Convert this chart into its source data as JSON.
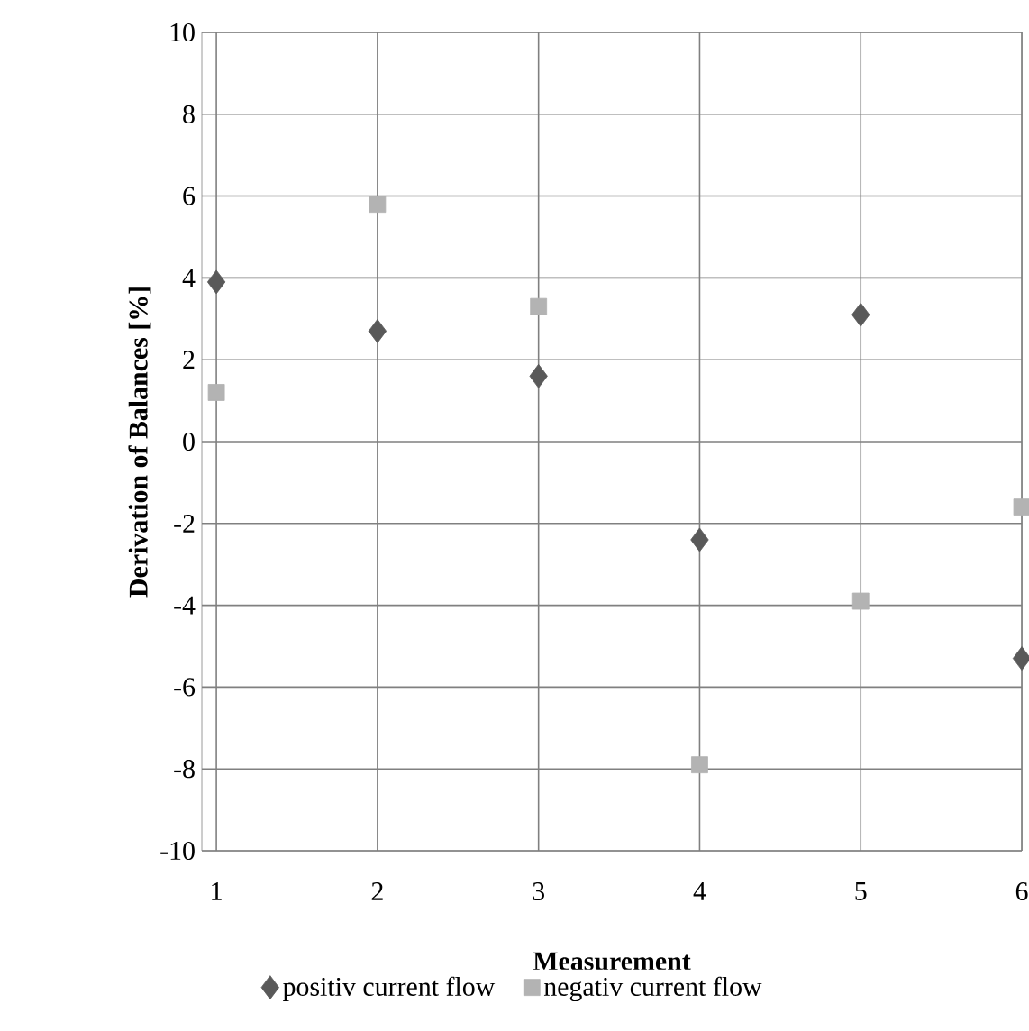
{
  "chart_data": {
    "type": "scatter",
    "xlabel": "Measurement",
    "ylabel": "Derivation of Balances [%]",
    "x": [
      1,
      2,
      3,
      4,
      5,
      6
    ],
    "series": [
      {
        "name": "positiv current flow",
        "color": "#595959",
        "marker": "diamond",
        "values": [
          3.9,
          2.7,
          1.6,
          -2.4,
          3.1,
          -5.3
        ]
      },
      {
        "name": "negativ current flow",
        "color": "#b3b3b3",
        "marker": "square",
        "values": [
          1.2,
          5.8,
          3.3,
          -7.9,
          -3.9,
          -1.6
        ]
      }
    ],
    "xlim": [
      0.91,
      6
    ],
    "xticks": [
      1,
      2,
      3,
      4,
      5,
      6
    ],
    "ylim": [
      -10,
      10
    ],
    "yticks": [
      -10,
      -8,
      -6,
      -4,
      -2,
      0,
      2,
      4,
      6,
      8,
      10
    ],
    "grid": true,
    "legend": "bottom"
  }
}
